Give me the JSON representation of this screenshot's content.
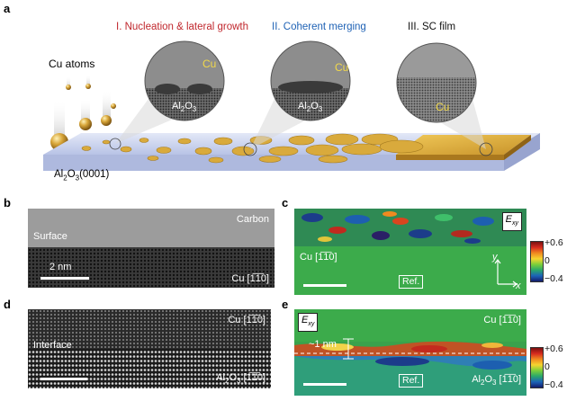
{
  "panels": {
    "a": {
      "label": "a",
      "stage1": "I. Nucleation & lateral growth",
      "stage2": "II. Coherent merging",
      "stage3": "III. SC film",
      "cu_atoms": "Cu atoms",
      "cu": "Cu",
      "al2o3": "Al",
      "al2o3_sub": "2",
      "al2o3_o": "O",
      "al2o3_sub3": "3",
      "substrate": "Al",
      "substrate_rest": "O",
      "substrate_orient": "(0001)"
    },
    "b": {
      "label": "b",
      "carbon": "Carbon",
      "surface": "Surface",
      "scale": "2 nm",
      "cu_dir": "Cu [1̅1̅0]"
    },
    "c": {
      "label": "c",
      "cu_dir": "Cu [1̅1̅0]",
      "ref": "Ref.",
      "exy": "E",
      "exy_sub": "xy",
      "axis_x": "x",
      "axis_y": "y",
      "cbar_max": "+0.6",
      "cbar_mid": "0",
      "cbar_min": "−0.4"
    },
    "d": {
      "label": "d",
      "cu_dir": "Cu [1̅1̅0]",
      "interface": "Interface",
      "al_dir": "[1̅1̅0]"
    },
    "e": {
      "label": "e",
      "cu_dir": "Cu [1̅1̅0]",
      "one_nm": "~1 nm",
      "ref": "Ref.",
      "exy": "E",
      "exy_sub": "xy",
      "al_dir": "[1̅1̅0]",
      "cbar_max": "+0.6",
      "cbar_mid": "0",
      "cbar_min": "−0.4"
    }
  },
  "colors": {
    "stage1": "#c0272d",
    "stage2": "#1f62b5",
    "stage3": "#111111",
    "copper": "#d8a93a",
    "substrate": "#c9d3ef",
    "strain_green": "#3cab4b"
  }
}
